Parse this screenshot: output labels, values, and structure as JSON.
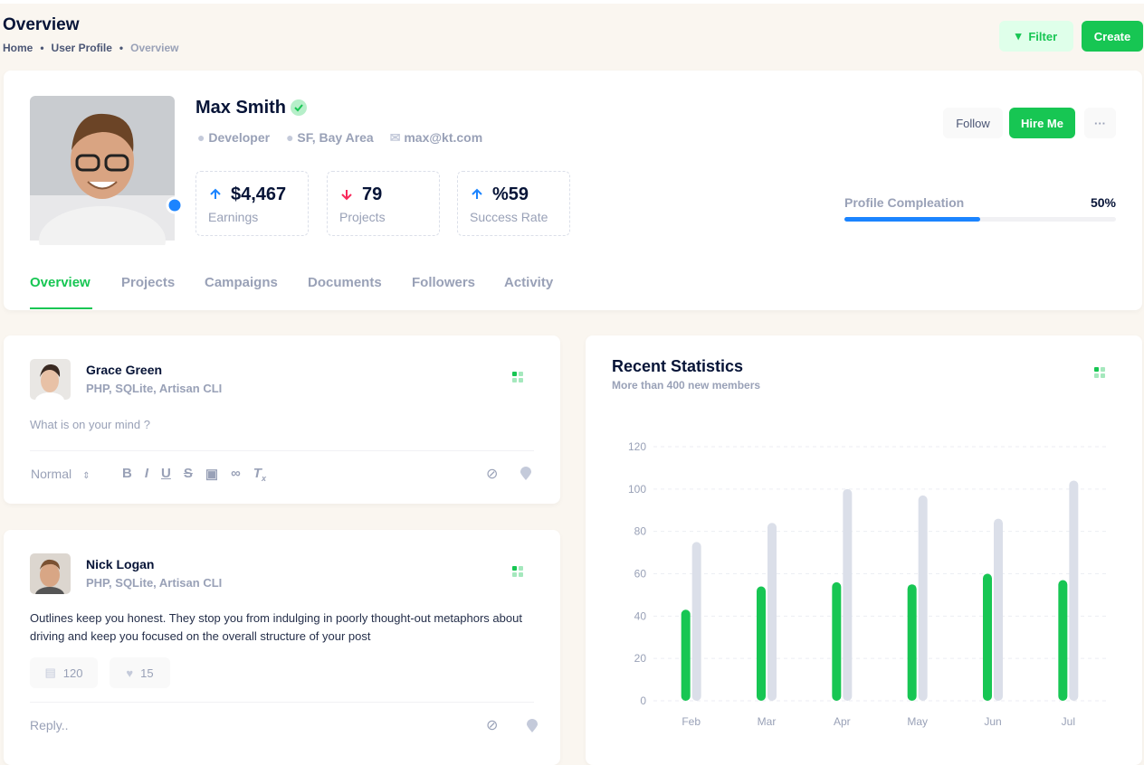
{
  "header": {
    "title": "Overview",
    "breadcrumb": [
      "Home",
      "User Profile",
      "Overview"
    ],
    "buttons": [
      "Filter",
      "Create"
    ]
  },
  "profile": {
    "name": "Max Smith",
    "meta": [
      "Developer",
      "SF, Bay Area",
      "max@kt.com"
    ],
    "stats": [
      {
        "value": "$4,467",
        "label": "Earnings"
      },
      {
        "value": "79",
        "label": "Projects"
      },
      {
        "value": "%59",
        "label": "Success Rate"
      }
    ],
    "buttons": [
      "Follow",
      "Hire Me"
    ],
    "completion": {
      "label": "Profile Compleation",
      "value": 50,
      "value_label": "50%"
    }
  },
  "tabs": [
    "Overview",
    "Projects",
    "Campaigns",
    "Documents",
    "Followers",
    "Activity"
  ],
  "posts": [
    {
      "author": "Grace Green",
      "skills": "PHP, SQLite, Artisan CLI",
      "placeholder": "What is on your mind ?",
      "format": "Normal"
    },
    {
      "author": "Nick Logan",
      "skills": "PHP, SQLite, Artisan CLI",
      "text": "Outlines keep you honest. They stop you from indulging in poorly thought-out metaphors about driving and keep you focused on the overall structure of your post",
      "comments": "120",
      "likes": "15",
      "reply": "Reply.."
    }
  ],
  "chart_data": {
    "type": "bar",
    "title": "Recent Statistics",
    "subtitle": "More than 400 new members",
    "categories": [
      "Feb",
      "Mar",
      "Apr",
      "May",
      "Jun",
      "Jul"
    ],
    "series": [
      {
        "color": "#17c653",
        "values": [
          43,
          54,
          56,
          55,
          60,
          57
        ]
      },
      {
        "color": "#dbdfe9",
        "values": [
          75,
          84,
          100,
          97,
          86,
          104
        ]
      }
    ],
    "ylim": [
      0,
      120
    ],
    "yticks": [
      0,
      20,
      40,
      60,
      80,
      100,
      120
    ],
    "grid": true
  }
}
